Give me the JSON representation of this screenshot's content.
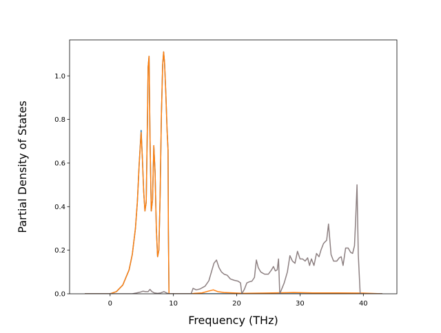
{
  "chart_data": {
    "type": "line",
    "title": "",
    "xlabel": "Frequency (THz)",
    "ylabel": "Partial Density of States",
    "xlim": [
      -6.4,
      45.3
    ],
    "ylim": [
      0.0,
      1.165
    ],
    "grid": false,
    "legend": "none",
    "x_ticks": [
      0,
      10,
      20,
      30,
      40
    ],
    "y_ticks": [
      0.0,
      0.2,
      0.4,
      0.6,
      0.8,
      1.0
    ],
    "x_tick_labels": [
      "0",
      "10",
      "20",
      "30",
      "40"
    ],
    "y_tick_labels": [
      "0.0",
      "0.2",
      "0.4",
      "0.6",
      "0.8",
      "1.0"
    ],
    "series": [
      {
        "color": "#1f77b4",
        "x": [
          -4.0,
          0.0,
          1.0,
          2.0,
          3.0,
          3.5,
          4.0,
          4.3,
          4.6,
          4.9,
          5.1,
          5.3,
          5.5,
          5.7,
          5.9,
          6.0,
          6.15,
          6.3,
          6.5,
          6.7,
          6.9,
          7.1,
          7.3,
          7.5,
          7.7,
          7.9,
          8.1,
          8.3,
          8.45,
          8.6,
          8.8,
          9.0,
          9.15,
          9.2,
          9.3,
          10.0,
          43.0
        ],
        "y": [
          0.0,
          0.0,
          0.01,
          0.04,
          0.11,
          0.18,
          0.3,
          0.42,
          0.6,
          0.75,
          0.62,
          0.47,
          0.38,
          0.42,
          0.8,
          1.04,
          1.09,
          0.72,
          0.38,
          0.43,
          0.68,
          0.56,
          0.3,
          0.17,
          0.2,
          0.45,
          0.82,
          1.05,
          1.11,
          1.06,
          0.92,
          0.75,
          0.66,
          0.3,
          0.0,
          0.0,
          0.0
        ]
      },
      {
        "color": "#ff7f0e",
        "x": [
          -4.0,
          0.0,
          1.0,
          2.0,
          3.0,
          3.5,
          4.0,
          4.3,
          4.6,
          4.9,
          5.1,
          5.3,
          5.5,
          5.7,
          5.9,
          6.0,
          6.15,
          6.3,
          6.5,
          6.7,
          6.9,
          7.1,
          7.3,
          7.5,
          7.7,
          7.9,
          8.1,
          8.3,
          8.45,
          8.6,
          8.8,
          9.0,
          9.15,
          9.2,
          9.3,
          12.9,
          13.3,
          14.5,
          15.5,
          16.3,
          17.0,
          18.0,
          19.5,
          21.0,
          24.0,
          28.0,
          29.0,
          32.0,
          36.0,
          40.0,
          43.0
        ],
        "y": [
          0.0,
          0.0,
          0.01,
          0.04,
          0.11,
          0.18,
          0.3,
          0.42,
          0.6,
          0.74,
          0.62,
          0.47,
          0.38,
          0.42,
          0.8,
          1.04,
          1.09,
          0.72,
          0.38,
          0.43,
          0.68,
          0.56,
          0.3,
          0.17,
          0.2,
          0.45,
          0.82,
          1.05,
          1.11,
          1.06,
          0.92,
          0.75,
          0.66,
          0.3,
          0.0,
          0.0,
          0.002,
          0.004,
          0.012,
          0.018,
          0.01,
          0.006,
          0.004,
          0.002,
          0.003,
          0.005,
          0.006,
          0.004,
          0.004,
          0.003,
          0.0
        ]
      },
      {
        "color": "#8c7f80",
        "x": [
          -4.0,
          3.5,
          4.2,
          4.8,
          5.2,
          5.6,
          6.0,
          6.3,
          6.6,
          7.0,
          7.5,
          8.0,
          8.5,
          9.0,
          9.3,
          12.8,
          13.1,
          13.6,
          14.2,
          15.0,
          15.6,
          16.0,
          16.4,
          16.8,
          17.2,
          17.6,
          18.0,
          18.5,
          19.0,
          19.6,
          20.2,
          20.6,
          20.8,
          21.2,
          21.6,
          22.0,
          22.4,
          22.8,
          23.1,
          23.4,
          23.8,
          24.4,
          25.0,
          25.5,
          25.8,
          26.1,
          26.4,
          26.6,
          26.8,
          27.5,
          28.0,
          28.4,
          28.8,
          29.2,
          29.6,
          30.0,
          30.4,
          30.8,
          31.2,
          31.5,
          31.8,
          32.2,
          32.6,
          33.0,
          33.3,
          33.7,
          34.0,
          34.2,
          34.5,
          34.9,
          35.3,
          35.8,
          36.2,
          36.5,
          36.8,
          37.2,
          37.6,
          38.0,
          38.3,
          38.6,
          38.8,
          39.0,
          39.2,
          39.5,
          43.0
        ],
        "y": [
          0.0,
          0.0,
          0.004,
          0.008,
          0.012,
          0.01,
          0.01,
          0.02,
          0.01,
          0.004,
          0.002,
          0.004,
          0.01,
          0.003,
          0.0,
          0.0,
          0.025,
          0.018,
          0.022,
          0.035,
          0.06,
          0.1,
          0.14,
          0.155,
          0.12,
          0.1,
          0.09,
          0.085,
          0.068,
          0.062,
          0.058,
          0.05,
          0.0,
          0.02,
          0.05,
          0.055,
          0.058,
          0.075,
          0.155,
          0.12,
          0.1,
          0.09,
          0.09,
          0.11,
          0.125,
          0.105,
          0.11,
          0.16,
          0.0,
          0.05,
          0.1,
          0.175,
          0.15,
          0.14,
          0.195,
          0.16,
          0.16,
          0.15,
          0.165,
          0.13,
          0.16,
          0.13,
          0.185,
          0.17,
          0.2,
          0.23,
          0.24,
          0.245,
          0.32,
          0.18,
          0.15,
          0.15,
          0.165,
          0.17,
          0.13,
          0.21,
          0.21,
          0.19,
          0.185,
          0.22,
          0.35,
          0.5,
          0.18,
          0.0,
          0.0
        ]
      }
    ]
  }
}
